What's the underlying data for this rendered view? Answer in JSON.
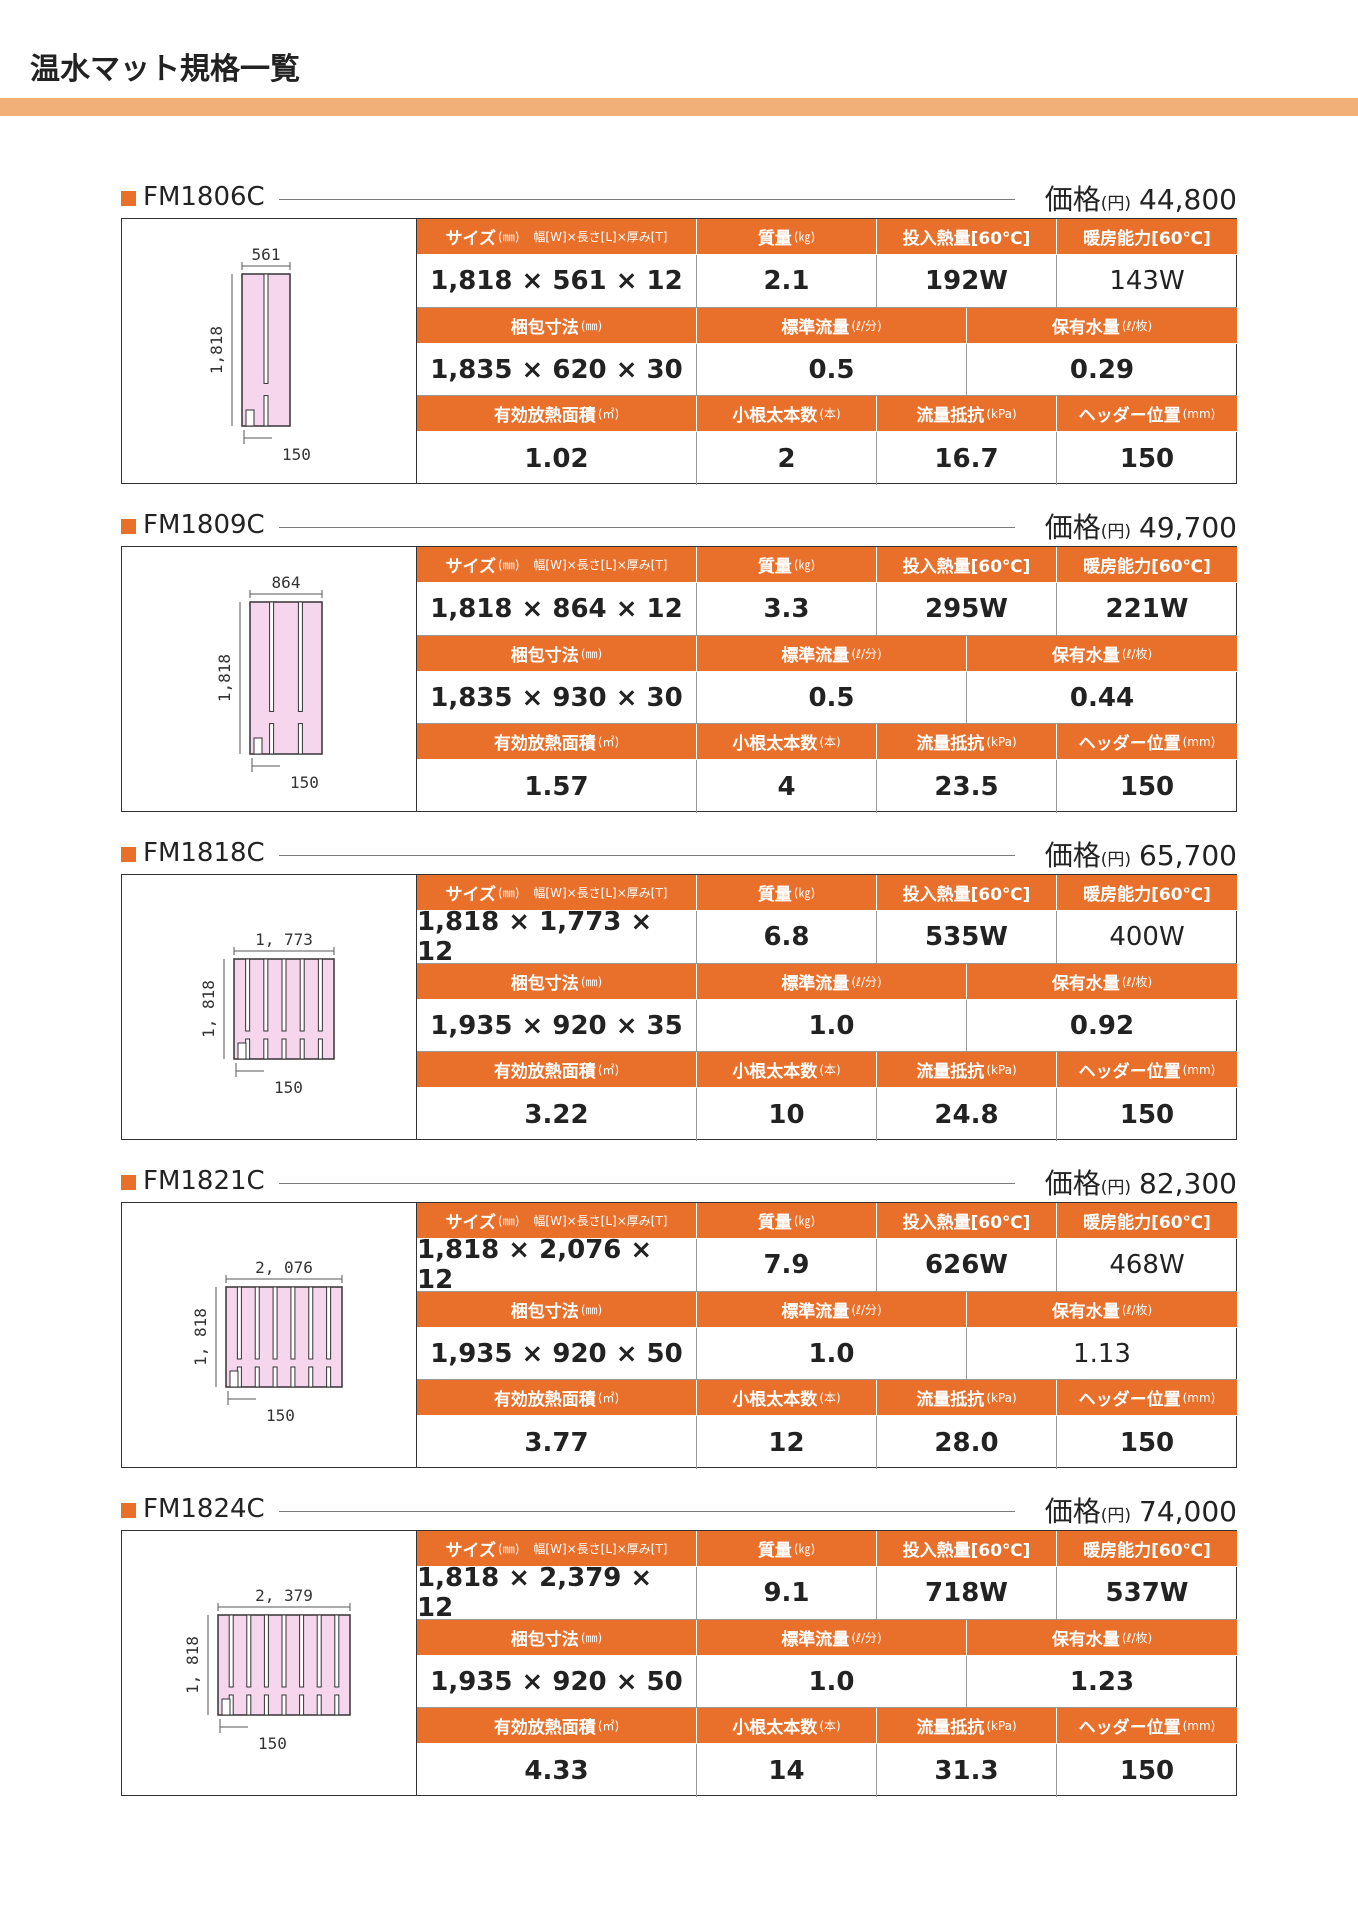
{
  "page": {
    "title": "温水マット規格一覧"
  },
  "labels": {
    "price_prefix": "価格",
    "price_unit": "(円)",
    "size": "サイズ",
    "size_unit": "(㎜)",
    "size_dims": "幅[W]×長さ[L]×厚み[T]",
    "mass": "質量",
    "mass_unit": "(㎏)",
    "heat_input": "投入熱量[60℃]",
    "heating_capacity": "暖房能力[60℃]",
    "pack_size": "梱包寸法",
    "pack_unit": "(㎜)",
    "flow": "標準流量",
    "flow_unit": "(ℓ/分)",
    "water": "保有水量",
    "water_unit": "(ℓ/枚)",
    "area": "有効放熱面積",
    "area_unit": "(㎡)",
    "branches": "小根太本数",
    "branches_unit": "(本)",
    "resistance": "流量抵抗",
    "resistance_unit": "(kPa)",
    "header_pos": "ヘッダー位置",
    "header_pos_unit": "(mm)"
  },
  "products": [
    {
      "model": "FM1806C",
      "price": "44,800",
      "size": "1,818 × 561 × 12",
      "mass": "2.1",
      "heat_input": "192W",
      "heating_capacity": "143W",
      "pack_size": "1,835 × 620 × 30",
      "flow": "0.5",
      "water": "0.29",
      "area": "1.02",
      "branches": "2",
      "resistance": "16.7",
      "header_pos": "150",
      "dim_width": "561",
      "dim_length": "1,818",
      "dim_header": "150",
      "slots": 2
    },
    {
      "model": "FM1809C",
      "price": "49,700",
      "size": "1,818 × 864 × 12",
      "mass": "3.3",
      "heat_input": "295W",
      "heating_capacity": "221W",
      "pack_size": "1,835 × 930 × 30",
      "flow": "0.5",
      "water": "0.44",
      "area": "1.57",
      "branches": "4",
      "resistance": "23.5",
      "header_pos": "150",
      "dim_width": "864",
      "dim_length": "1,818",
      "dim_header": "150",
      "slots": 4
    },
    {
      "model": "FM1818C",
      "price": "65,700",
      "size": "1,818 × 1,773 × 12",
      "mass": "6.8",
      "heat_input": "535W",
      "heating_capacity": "400W",
      "pack_size": "1,935 × 920 × 35",
      "flow": "1.0",
      "water": "0.92",
      "area": "3.22",
      "branches": "10",
      "resistance": "24.8",
      "header_pos": "150",
      "dim_width": "1, 773",
      "dim_length": "1, 818",
      "dim_header": "150",
      "slots": 10
    },
    {
      "model": "FM1821C",
      "price": "82,300",
      "size": "1,818 × 2,076 × 12",
      "mass": "7.9",
      "heat_input": "626W",
      "heating_capacity": "468W",
      "pack_size": "1,935 × 920 × 50",
      "flow": "1.0",
      "water": "1.13",
      "area": "3.77",
      "branches": "12",
      "resistance": "28.0",
      "header_pos": "150",
      "dim_width": "2, 076",
      "dim_length": "1, 818",
      "dim_header": "150",
      "slots": 12
    },
    {
      "model": "FM1824C",
      "price": "74,000",
      "size": "1,818 × 2,379 × 12",
      "mass": "9.1",
      "heat_input": "718W",
      "heating_capacity": "537W",
      "pack_size": "1,935 × 920 × 50",
      "flow": "1.0",
      "water": "1.23",
      "area": "4.33",
      "branches": "14",
      "resistance": "31.3",
      "header_pos": "150",
      "dim_width": "2, 379",
      "dim_length": "1, 818",
      "dim_header": "150",
      "slots": 14
    }
  ]
}
